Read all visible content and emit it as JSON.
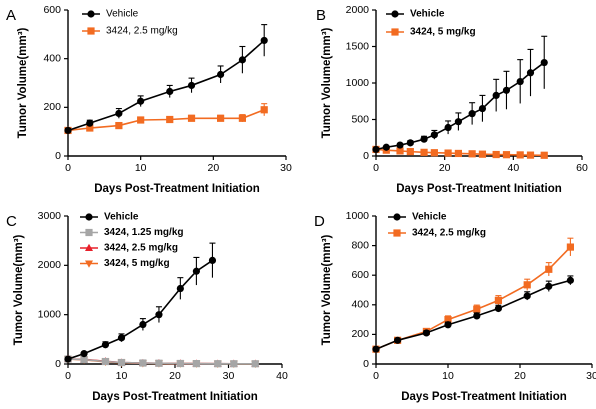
{
  "chart_data": [
    {
      "panel": "A",
      "type": "line",
      "xlabel": "Days Post-Treatment Initiation",
      "ylabel": "Tumor Volume(mm³)",
      "xlim": [
        0,
        30
      ],
      "ylim": [
        0,
        600
      ],
      "xticks": [
        0,
        10,
        20,
        30
      ],
      "yticks": [
        0,
        200,
        400,
        600
      ],
      "legend_position": "top-left",
      "series": [
        {
          "name": "Vehicle",
          "color": "#000000",
          "marker": "circle",
          "x": [
            0,
            3,
            7,
            10,
            14,
            17,
            21,
            24,
            27
          ],
          "y": [
            105,
            135,
            175,
            225,
            265,
            290,
            335,
            395,
            475
          ],
          "err": [
            8,
            12,
            20,
            22,
            25,
            30,
            35,
            55,
            65
          ]
        },
        {
          "name": "3424, 2.5 mg/kg",
          "color": "#f26b21",
          "marker": "square",
          "x": [
            0,
            3,
            7,
            10,
            14,
            17,
            21,
            24,
            27
          ],
          "y": [
            105,
            115,
            125,
            148,
            150,
            155,
            155,
            155,
            190
          ],
          "err": [
            5,
            6,
            8,
            10,
            10,
            12,
            12,
            15,
            25
          ]
        }
      ]
    },
    {
      "panel": "B",
      "type": "line",
      "xlabel": "Days Post-Treatment Initiation",
      "ylabel": "Tumor Volume(mm³)",
      "xlim": [
        0,
        60
      ],
      "ylim": [
        0,
        2000
      ],
      "xticks": [
        0,
        20,
        40,
        60
      ],
      "yticks": [
        0,
        500,
        1000,
        1500,
        2000
      ],
      "legend_position": "top-left",
      "series": [
        {
          "name": "Vehicle",
          "color": "#000000",
          "marker": "circle",
          "x": [
            0,
            3,
            7,
            10,
            14,
            17,
            21,
            24,
            28,
            31,
            35,
            38,
            42,
            45,
            49
          ],
          "y": [
            90,
            120,
            150,
            180,
            230,
            290,
            390,
            470,
            580,
            650,
            830,
            900,
            1020,
            1140,
            1280
          ],
          "err": [
            10,
            15,
            20,
            30,
            40,
            60,
            90,
            120,
            150,
            180,
            220,
            260,
            300,
            320,
            360
          ]
        },
        {
          "name": "3424, 5 mg/kg",
          "color": "#f26b21",
          "marker": "square",
          "x": [
            0,
            3,
            7,
            10,
            14,
            17,
            21,
            24,
            28,
            31,
            35,
            38,
            42,
            45,
            49
          ],
          "y": [
            90,
            80,
            70,
            60,
            50,
            45,
            40,
            35,
            30,
            25,
            20,
            18,
            15,
            12,
            10
          ],
          "err": [
            8,
            8,
            8,
            6,
            6,
            5,
            5,
            5,
            5,
            4,
            4,
            4,
            3,
            3,
            3
          ]
        }
      ]
    },
    {
      "panel": "C",
      "type": "line",
      "xlabel": "Days Post-Treatment Initiation",
      "ylabel": "Tumor Volume(mm³)",
      "xlim": [
        0,
        40
      ],
      "ylim": [
        0,
        3000
      ],
      "xticks": [
        0,
        10,
        20,
        30,
        40
      ],
      "yticks": [
        0,
        1000,
        2000,
        3000
      ],
      "legend_position": "top-left",
      "series": [
        {
          "name": "Vehicle",
          "color": "#000000",
          "marker": "circle",
          "x": [
            0,
            3,
            7,
            10,
            14,
            17,
            21,
            24,
            27
          ],
          "y": [
            100,
            210,
            390,
            530,
            800,
            1000,
            1530,
            1880,
            2100
          ],
          "err": [
            15,
            30,
            60,
            80,
            120,
            160,
            220,
            280,
            350
          ]
        },
        {
          "name": "3424, 1.25 mg/kg",
          "color": "#a6a6a6",
          "marker": "square",
          "x": [
            0,
            3,
            7,
            10,
            14,
            17,
            21,
            24,
            28,
            31,
            35
          ],
          "y": [
            100,
            90,
            50,
            30,
            20,
            15,
            10,
            8,
            6,
            5,
            5
          ],
          "err": [
            10,
            10,
            8,
            6,
            5,
            4,
            3,
            3,
            2,
            2,
            2
          ]
        },
        {
          "name": "3424, 2.5 mg/kg",
          "color": "#e8202a",
          "marker": "triangle-up",
          "x": [
            0,
            3,
            7,
            10,
            14,
            17,
            21,
            24,
            28,
            31,
            35
          ],
          "y": [
            100,
            95,
            55,
            30,
            20,
            15,
            10,
            8,
            6,
            5,
            5
          ],
          "err": [
            10,
            10,
            8,
            6,
            5,
            4,
            3,
            3,
            2,
            2,
            2
          ]
        },
        {
          "name": "3424, 5 mg/kg",
          "color": "#f26b21",
          "marker": "triangle-down",
          "x": [
            0,
            3,
            7,
            10,
            14,
            17,
            21,
            24,
            28,
            31,
            35
          ],
          "y": [
            100,
            85,
            45,
            25,
            15,
            12,
            8,
            6,
            5,
            4,
            4
          ],
          "err": [
            10,
            10,
            8,
            6,
            5,
            4,
            3,
            3,
            2,
            2,
            2
          ]
        }
      ]
    },
    {
      "panel": "D",
      "type": "line",
      "xlabel": "Days Post-Treatment Initiation",
      "ylabel": "Tumor Volume(mm³)",
      "xlim": [
        0,
        30
      ],
      "ylim": [
        0,
        1000
      ],
      "xticks": [
        0,
        10,
        20,
        30
      ],
      "yticks": [
        0,
        200,
        400,
        600,
        800,
        1000
      ],
      "legend_position": "top-left",
      "series": [
        {
          "name": "Vehicle",
          "color": "#000000",
          "marker": "circle",
          "x": [
            0,
            3,
            7,
            10,
            14,
            17,
            21,
            24,
            27
          ],
          "y": [
            100,
            160,
            210,
            265,
            325,
            375,
            460,
            525,
            565
          ],
          "err": [
            8,
            10,
            15,
            18,
            20,
            22,
            28,
            35,
            30
          ]
        },
        {
          "name": "3424, 2.5 mg/kg",
          "color": "#f26b21",
          "marker": "square",
          "x": [
            0,
            3,
            7,
            10,
            14,
            17,
            21,
            24,
            27
          ],
          "y": [
            100,
            160,
            220,
            300,
            370,
            430,
            535,
            640,
            790
          ],
          "err": [
            8,
            10,
            18,
            25,
            28,
            32,
            38,
            45,
            60
          ]
        }
      ]
    }
  ],
  "panels": [
    {
      "label": "A",
      "legend_bold": false
    },
    {
      "label": "B",
      "legend_bold": true
    },
    {
      "label": "C",
      "legend_bold": true
    },
    {
      "label": "D",
      "legend_bold": true
    }
  ]
}
